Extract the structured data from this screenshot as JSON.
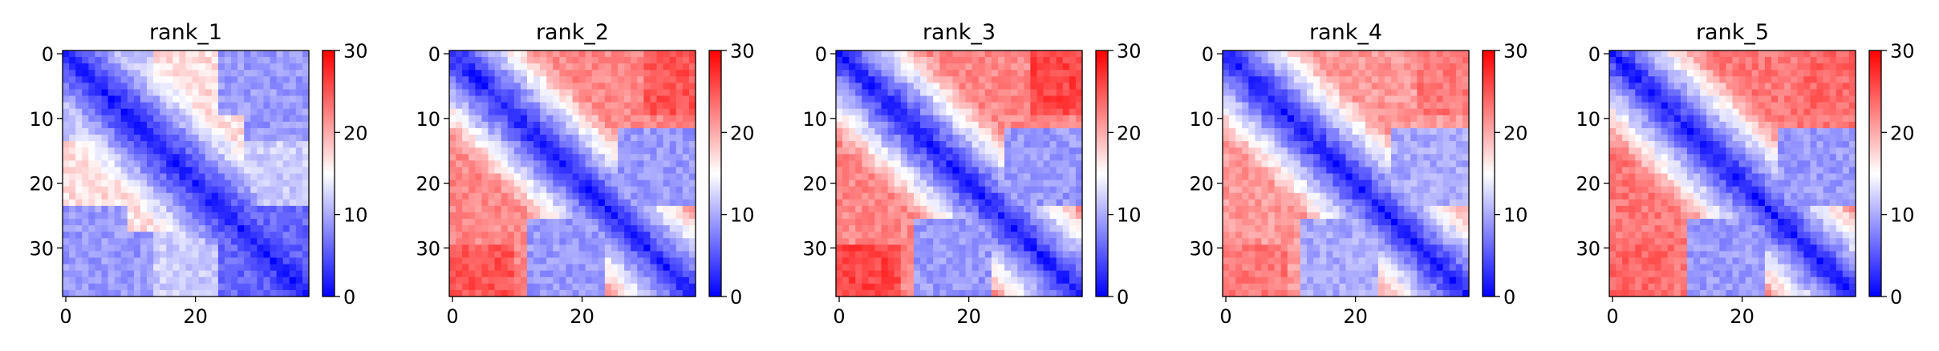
{
  "chart_data": [
    {
      "type": "heatmap",
      "title": "rank_1",
      "n": 38,
      "xticks": [
        "0",
        "20"
      ],
      "yticks": [
        "0",
        "10",
        "20",
        "30"
      ],
      "colorbar": {
        "ticks": [
          "0",
          "10",
          "20",
          "30"
        ],
        "vmin": 0,
        "vmax": 30,
        "colormap": "bwr"
      },
      "pattern": {
        "diag_low": 1.5,
        "near_slope": 1.2,
        "far_value": 12,
        "blocks": [
          [
            0,
            14,
            24,
            38,
            9
          ],
          [
            14,
            24,
            0,
            10,
            17
          ],
          [
            10,
            18,
            18,
            28,
            17
          ],
          [
            24,
            38,
            24,
            38,
            6
          ]
        ]
      }
    },
    {
      "type": "heatmap",
      "title": "rank_2",
      "n": 38,
      "xticks": [
        "0",
        "20"
      ],
      "yticks": [
        "0",
        "10",
        "20",
        "30"
      ],
      "colorbar": {
        "ticks": [
          "0",
          "10",
          "20",
          "30"
        ],
        "vmin": 0,
        "vmax": 30,
        "colormap": "bwr"
      },
      "pattern": {
        "diag_low": 1.5,
        "near_slope": 1.5,
        "far_value": 22,
        "blocks": [
          [
            0,
            12,
            16,
            38,
            22
          ],
          [
            26,
            38,
            12,
            24,
            9
          ],
          [
            16,
            24,
            26,
            38,
            9
          ],
          [
            30,
            38,
            0,
            10,
            25
          ],
          [
            0,
            10,
            30,
            38,
            25
          ]
        ]
      }
    },
    {
      "type": "heatmap",
      "title": "rank_3",
      "n": 38,
      "xticks": [
        "0",
        "20"
      ],
      "yticks": [
        "0",
        "10",
        "20",
        "30"
      ],
      "colorbar": {
        "ticks": [
          "0",
          "10",
          "20",
          "30"
        ],
        "vmin": 0,
        "vmax": 30,
        "colormap": "bwr"
      },
      "pattern": {
        "diag_low": 1.5,
        "near_slope": 1.5,
        "far_value": 22,
        "blocks": [
          [
            0,
            12,
            16,
            38,
            22
          ],
          [
            26,
            38,
            12,
            24,
            9
          ],
          [
            16,
            24,
            26,
            38,
            9
          ],
          [
            30,
            38,
            0,
            10,
            26
          ],
          [
            0,
            10,
            30,
            38,
            26
          ]
        ]
      }
    },
    {
      "type": "heatmap",
      "title": "rank_4",
      "n": 38,
      "xticks": [
        "0",
        "20"
      ],
      "yticks": [
        "0",
        "10",
        "20",
        "30"
      ],
      "colorbar": {
        "ticks": [
          "0",
          "10",
          "20",
          "30"
        ],
        "vmin": 0,
        "vmax": 30,
        "colormap": "bwr"
      },
      "pattern": {
        "diag_low": 1.5,
        "near_slope": 1.5,
        "far_value": 21,
        "blocks": [
          [
            0,
            12,
            16,
            38,
            21
          ],
          [
            26,
            38,
            12,
            24,
            10
          ],
          [
            16,
            24,
            26,
            38,
            10
          ],
          [
            30,
            38,
            0,
            10,
            23
          ],
          [
            0,
            10,
            30,
            38,
            23
          ]
        ]
      }
    },
    {
      "type": "heatmap",
      "title": "rank_5",
      "n": 38,
      "xticks": [
        "0",
        "20"
      ],
      "yticks": [
        "0",
        "10",
        "20",
        "30"
      ],
      "colorbar": {
        "ticks": [
          "0",
          "10",
          "20",
          "30"
        ],
        "vmin": 0,
        "vmax": 30,
        "colormap": "bwr"
      },
      "pattern": {
        "diag_low": 1.5,
        "near_slope": 1.5,
        "far_value": 22,
        "blocks": [
          [
            0,
            12,
            16,
            38,
            23
          ],
          [
            26,
            38,
            12,
            24,
            9
          ],
          [
            16,
            24,
            26,
            38,
            9
          ],
          [
            30,
            38,
            0,
            10,
            24
          ],
          [
            0,
            10,
            30,
            38,
            24
          ]
        ]
      }
    }
  ]
}
